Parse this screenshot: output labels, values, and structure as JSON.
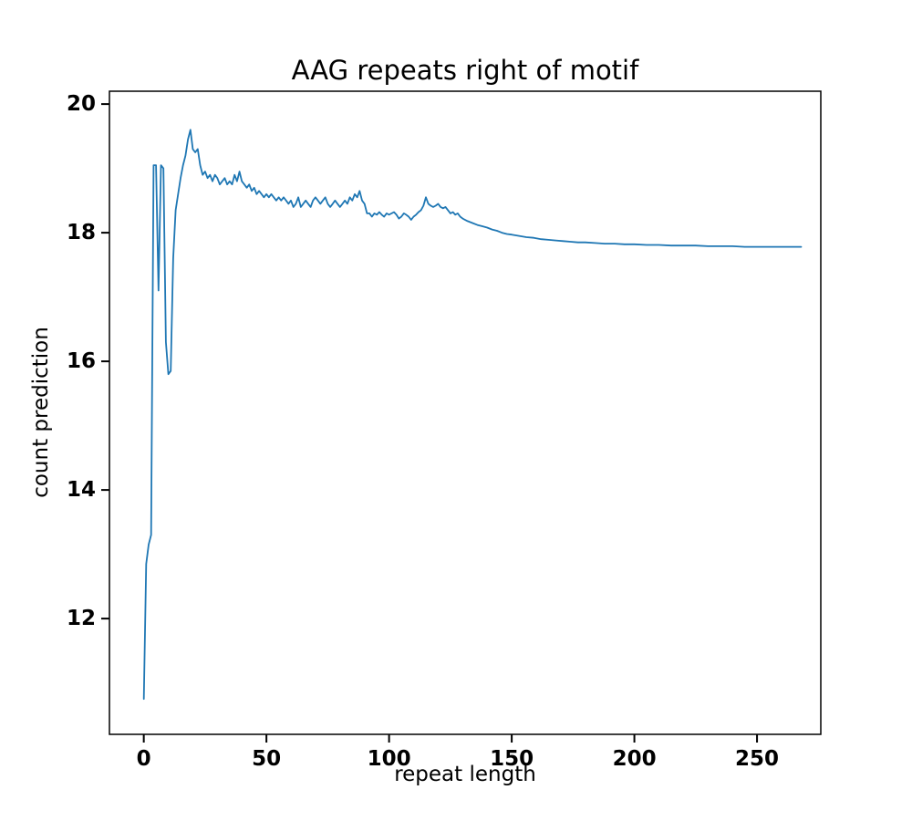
{
  "chart_data": {
    "type": "line",
    "title": "AAG repeats right of motif",
    "xlabel": "repeat length",
    "ylabel": "count prediction",
    "xlim": [
      -14,
      276
    ],
    "ylim": [
      10.2,
      20.2
    ],
    "xticks": [
      0,
      50,
      100,
      150,
      200,
      250
    ],
    "yticks": [
      12,
      14,
      16,
      18,
      20
    ],
    "grid": false,
    "legend": "none",
    "line_color": "#1f77b4",
    "series": [
      {
        "name": "AAG",
        "points": [
          [
            0,
            10.75
          ],
          [
            1,
            12.85
          ],
          [
            2,
            13.15
          ],
          [
            3,
            13.3
          ],
          [
            4,
            19.05
          ],
          [
            5,
            19.05
          ],
          [
            6,
            17.1
          ],
          [
            7,
            19.05
          ],
          [
            8,
            19.0
          ],
          [
            9,
            16.3
          ],
          [
            10,
            15.8
          ],
          [
            11,
            15.85
          ],
          [
            12,
            17.6
          ],
          [
            13,
            18.35
          ],
          [
            14,
            18.6
          ],
          [
            15,
            18.85
          ],
          [
            16,
            19.05
          ],
          [
            17,
            19.2
          ],
          [
            18,
            19.45
          ],
          [
            19,
            19.6
          ],
          [
            20,
            19.3
          ],
          [
            21,
            19.25
          ],
          [
            22,
            19.3
          ],
          [
            23,
            19.05
          ],
          [
            24,
            18.9
          ],
          [
            25,
            18.95
          ],
          [
            26,
            18.85
          ],
          [
            27,
            18.9
          ],
          [
            28,
            18.8
          ],
          [
            29,
            18.9
          ],
          [
            30,
            18.85
          ],
          [
            31,
            18.75
          ],
          [
            32,
            18.8
          ],
          [
            33,
            18.85
          ],
          [
            34,
            18.75
          ],
          [
            35,
            18.8
          ],
          [
            36,
            18.75
          ],
          [
            37,
            18.9
          ],
          [
            38,
            18.8
          ],
          [
            39,
            18.95
          ],
          [
            40,
            18.8
          ],
          [
            41,
            18.75
          ],
          [
            42,
            18.7
          ],
          [
            43,
            18.75
          ],
          [
            44,
            18.65
          ],
          [
            45,
            18.7
          ],
          [
            46,
            18.6
          ],
          [
            47,
            18.65
          ],
          [
            48,
            18.6
          ],
          [
            49,
            18.55
          ],
          [
            50,
            18.6
          ],
          [
            51,
            18.55
          ],
          [
            52,
            18.6
          ],
          [
            53,
            18.55
          ],
          [
            54,
            18.5
          ],
          [
            55,
            18.55
          ],
          [
            56,
            18.5
          ],
          [
            57,
            18.55
          ],
          [
            58,
            18.5
          ],
          [
            59,
            18.45
          ],
          [
            60,
            18.5
          ],
          [
            61,
            18.4
          ],
          [
            62,
            18.45
          ],
          [
            63,
            18.55
          ],
          [
            64,
            18.4
          ],
          [
            65,
            18.45
          ],
          [
            66,
            18.5
          ],
          [
            67,
            18.45
          ],
          [
            68,
            18.4
          ],
          [
            69,
            18.5
          ],
          [
            70,
            18.55
          ],
          [
            71,
            18.5
          ],
          [
            72,
            18.45
          ],
          [
            73,
            18.5
          ],
          [
            74,
            18.55
          ],
          [
            75,
            18.45
          ],
          [
            76,
            18.4
          ],
          [
            77,
            18.45
          ],
          [
            78,
            18.5
          ],
          [
            79,
            18.45
          ],
          [
            80,
            18.4
          ],
          [
            81,
            18.45
          ],
          [
            82,
            18.5
          ],
          [
            83,
            18.45
          ],
          [
            84,
            18.55
          ],
          [
            85,
            18.5
          ],
          [
            86,
            18.6
          ],
          [
            87,
            18.55
          ],
          [
            88,
            18.65
          ],
          [
            89,
            18.5
          ],
          [
            90,
            18.45
          ],
          [
            91,
            18.3
          ],
          [
            92,
            18.3
          ],
          [
            93,
            18.25
          ],
          [
            94,
            18.3
          ],
          [
            95,
            18.28
          ],
          [
            96,
            18.32
          ],
          [
            97,
            18.28
          ],
          [
            98,
            18.25
          ],
          [
            99,
            18.3
          ],
          [
            100,
            18.28
          ],
          [
            101,
            18.3
          ],
          [
            102,
            18.32
          ],
          [
            103,
            18.28
          ],
          [
            104,
            18.22
          ],
          [
            105,
            18.25
          ],
          [
            106,
            18.3
          ],
          [
            107,
            18.28
          ],
          [
            108,
            18.25
          ],
          [
            109,
            18.2
          ],
          [
            110,
            18.25
          ],
          [
            111,
            18.28
          ],
          [
            112,
            18.32
          ],
          [
            113,
            18.35
          ],
          [
            114,
            18.42
          ],
          [
            115,
            18.55
          ],
          [
            116,
            18.45
          ],
          [
            117,
            18.42
          ],
          [
            118,
            18.4
          ],
          [
            119,
            18.42
          ],
          [
            120,
            18.45
          ],
          [
            121,
            18.4
          ],
          [
            122,
            18.38
          ],
          [
            123,
            18.4
          ],
          [
            124,
            18.35
          ],
          [
            125,
            18.3
          ],
          [
            126,
            18.32
          ],
          [
            127,
            18.28
          ],
          [
            128,
            18.3
          ],
          [
            129,
            18.25
          ],
          [
            130,
            18.22
          ],
          [
            132,
            18.18
          ],
          [
            134,
            18.15
          ],
          [
            136,
            18.12
          ],
          [
            138,
            18.1
          ],
          [
            140,
            18.08
          ],
          [
            142,
            18.05
          ],
          [
            144,
            18.03
          ],
          [
            146,
            18.0
          ],
          [
            148,
            17.98
          ],
          [
            150,
            17.97
          ],
          [
            153,
            17.95
          ],
          [
            156,
            17.93
          ],
          [
            159,
            17.92
          ],
          [
            162,
            17.9
          ],
          [
            165,
            17.89
          ],
          [
            168,
            17.88
          ],
          [
            171,
            17.87
          ],
          [
            174,
            17.86
          ],
          [
            177,
            17.85
          ],
          [
            180,
            17.85
          ],
          [
            184,
            17.84
          ],
          [
            188,
            17.83
          ],
          [
            192,
            17.83
          ],
          [
            196,
            17.82
          ],
          [
            200,
            17.82
          ],
          [
            205,
            17.81
          ],
          [
            210,
            17.81
          ],
          [
            215,
            17.8
          ],
          [
            220,
            17.8
          ],
          [
            225,
            17.8
          ],
          [
            230,
            17.79
          ],
          [
            235,
            17.79
          ],
          [
            240,
            17.79
          ],
          [
            245,
            17.78
          ],
          [
            250,
            17.78
          ],
          [
            255,
            17.78
          ],
          [
            260,
            17.78
          ],
          [
            264,
            17.78
          ],
          [
            268,
            17.78
          ]
        ]
      }
    ]
  }
}
